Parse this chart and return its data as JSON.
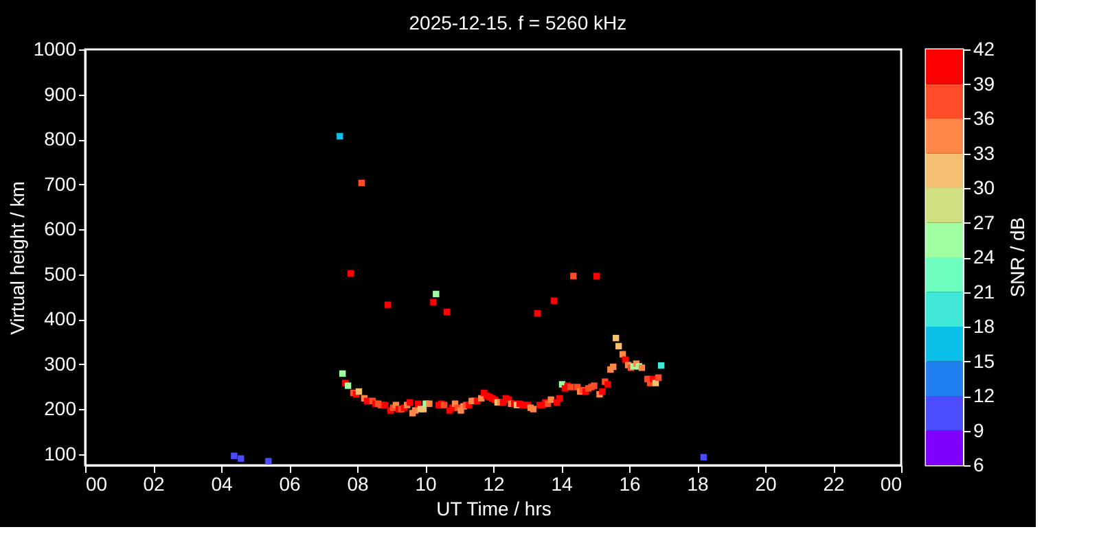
{
  "chart_data": {
    "type": "scatter",
    "title": "2025-12-15. f = 5260 kHz",
    "xlabel": "UT Time / hrs",
    "ylabel": "Virtual height / km",
    "clabel": "SNR / dB",
    "x": [
      4.38,
      4.58,
      5.39,
      7.49,
      8.13,
      7.81,
      8.9,
      10.32,
      10.24,
      10.64,
      13.3,
      13.79,
      14.36,
      15.04,
      7.57,
      7.65,
      7.73,
      7.89,
      7.97,
      8.05,
      8.21,
      8.29,
      8.37,
      8.45,
      8.54,
      8.62,
      8.7,
      8.81,
      8.98,
      9.06,
      9.14,
      9.22,
      9.3,
      9.38,
      9.47,
      9.55,
      9.63,
      9.71,
      9.79,
      9.87,
      9.95,
      10.02,
      10.12,
      10.4,
      10.48,
      10.56,
      10.72,
      10.8,
      10.88,
      10.96,
      11.05,
      11.13,
      11.21,
      11.29,
      11.37,
      11.45,
      11.53,
      11.65,
      11.73,
      11.81,
      11.89,
      11.97,
      12.05,
      12.13,
      12.21,
      12.29,
      12.37,
      12.45,
      12.53,
      12.62,
      12.7,
      12.78,
      12.86,
      12.94,
      13.02,
      13.1,
      13.18,
      13.37,
      13.45,
      13.53,
      13.61,
      13.7,
      13.87,
      13.95,
      14.03,
      14.11,
      14.19,
      14.28,
      14.48,
      14.56,
      14.64,
      14.72,
      14.8,
      14.89,
      14.97,
      15.13,
      15.21,
      15.29,
      15.37,
      15.45,
      15.53,
      15.61,
      15.69,
      15.81,
      15.89,
      15.97,
      16.05,
      16.13,
      16.21,
      16.29,
      16.37,
      16.54,
      16.62,
      16.7,
      16.78,
      16.86,
      16.94,
      18.19
    ],
    "values": [
      96,
      90,
      84,
      807,
      703,
      502,
      432,
      456,
      438,
      416,
      413,
      441,
      496,
      496,
      279,
      258,
      252,
      236,
      233,
      239,
      224,
      218,
      218,
      218,
      212,
      212,
      209,
      209,
      197,
      203,
      209,
      200,
      200,
      203,
      209,
      215,
      191,
      197,
      212,
      200,
      200,
      212,
      212,
      209,
      212,
      209,
      197,
      203,
      212,
      203,
      197,
      206,
      209,
      209,
      218,
      218,
      218,
      224,
      236,
      230,
      227,
      224,
      221,
      215,
      215,
      215,
      224,
      221,
      212,
      212,
      209,
      212,
      209,
      209,
      209,
      203,
      200,
      209,
      209,
      215,
      212,
      221,
      215,
      224,
      255,
      246,
      252,
      249,
      249,
      239,
      242,
      239,
      246,
      249,
      252,
      233,
      239,
      261,
      255,
      288,
      294,
      358,
      340,
      322,
      310,
      298,
      292,
      295,
      301,
      295,
      292,
      267,
      258,
      267,
      258,
      270,
      297,
      93
    ],
    "cvalues": [
      10,
      10,
      10,
      16,
      37,
      40,
      40,
      25,
      40,
      40,
      40,
      40,
      37,
      40,
      25,
      40,
      25,
      37,
      40,
      31,
      34,
      40,
      40,
      37,
      40,
      37,
      37,
      40,
      40,
      37,
      34,
      40,
      37,
      40,
      34,
      40,
      34,
      34,
      40,
      31,
      31,
      25,
      34,
      40,
      40,
      37,
      40,
      40,
      34,
      37,
      34,
      34,
      37,
      40,
      34,
      34,
      40,
      34,
      40,
      40,
      40,
      40,
      40,
      31,
      34,
      40,
      40,
      40,
      34,
      40,
      31,
      40,
      40,
      40,
      40,
      34,
      34,
      40,
      40,
      40,
      37,
      34,
      40,
      40,
      25,
      40,
      40,
      37,
      37,
      34,
      37,
      40,
      37,
      37,
      37,
      34,
      40,
      37,
      40,
      34,
      34,
      31,
      31,
      34,
      40,
      34,
      37,
      25,
      34,
      25,
      34,
      37,
      37,
      40,
      31,
      37,
      19,
      10
    ],
    "xlim": [
      0,
      24
    ],
    "xticks": [
      {
        "value": 0,
        "label": "00"
      },
      {
        "value": 2,
        "label": "02"
      },
      {
        "value": 4,
        "label": "04"
      },
      {
        "value": 6,
        "label": "06"
      },
      {
        "value": 8,
        "label": "08"
      },
      {
        "value": 10,
        "label": "10"
      },
      {
        "value": 12,
        "label": "12"
      },
      {
        "value": 14,
        "label": "14"
      },
      {
        "value": 16,
        "label": "16"
      },
      {
        "value": 18,
        "label": "18"
      },
      {
        "value": 20,
        "label": "20"
      },
      {
        "value": 22,
        "label": "22"
      },
      {
        "value": 24,
        "label": "00"
      }
    ],
    "ylim": [
      75,
      1000
    ],
    "yticks": [
      100,
      200,
      300,
      400,
      500,
      600,
      700,
      800,
      900,
      1000
    ],
    "clim": [
      6,
      42
    ],
    "cticks": [
      6,
      9,
      12,
      15,
      18,
      21,
      24,
      27,
      30,
      33,
      36,
      39,
      42
    ],
    "marker": "square",
    "grid": false
  }
}
